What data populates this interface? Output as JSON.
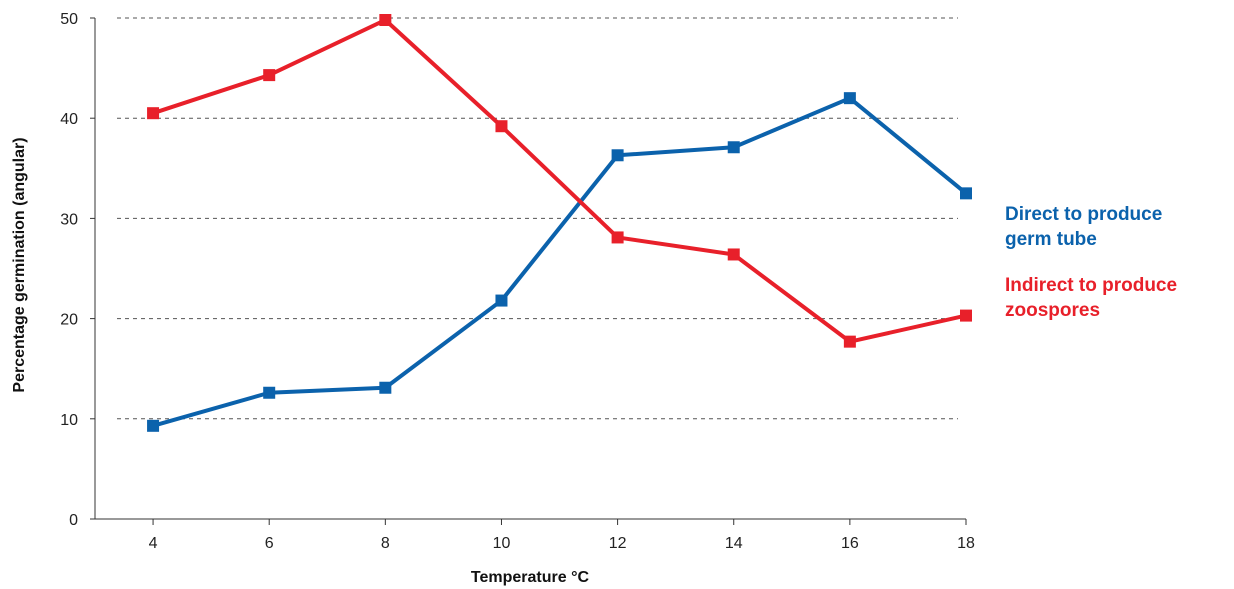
{
  "chart_data": {
    "type": "line",
    "title": "",
    "xlabel": "Temperature °C",
    "ylabel": "Percentage germination (angular)",
    "x": [
      4,
      6,
      8,
      10,
      12,
      14,
      16,
      18
    ],
    "xlim": [
      3,
      18
    ],
    "ylim": [
      0,
      50
    ],
    "yticks": [
      0,
      10,
      20,
      30,
      40,
      50
    ],
    "grid": "horizontal dashed",
    "legend_position": "right",
    "series": [
      {
        "name": "Direct to produce germ tube",
        "name_lines": [
          "Direct to produce",
          "germ tube"
        ],
        "color": "#0b62ac",
        "values": [
          9.3,
          12.6,
          13.1,
          21.8,
          36.3,
          37.1,
          42.0,
          32.5
        ]
      },
      {
        "name": "Indirect to produce zoospores",
        "name_lines": [
          "Indirect to produce",
          "zoospores"
        ],
        "color": "#e8202a",
        "values": [
          40.5,
          44.3,
          49.8,
          39.2,
          28.1,
          26.4,
          17.7,
          20.3
        ]
      }
    ]
  }
}
